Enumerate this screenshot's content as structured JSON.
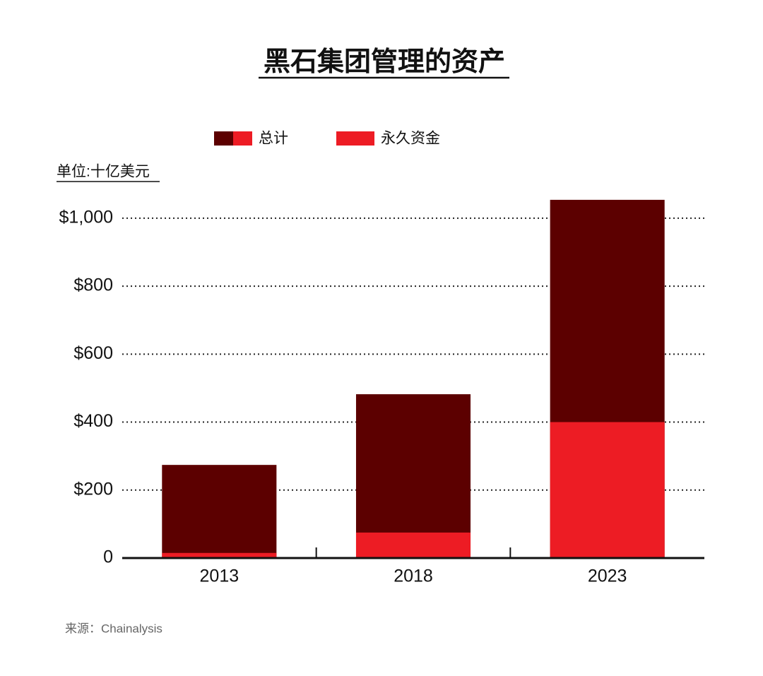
{
  "chart_data": {
    "type": "bar",
    "title": "黑石集团管理的资产",
    "y_axis_label": "单位:十亿美元",
    "source": "来源：Chainalysis",
    "categories": [
      "2013",
      "2018",
      "2023"
    ],
    "series": [
      {
        "name": "总计",
        "color": "#5c0000",
        "values": [
          274,
          482,
          1054
        ]
      },
      {
        "name": "永久资金",
        "color": "#ed1c24",
        "values": [
          15,
          75,
          400
        ]
      }
    ],
    "ylim": [
      0,
      1060
    ],
    "yticks": [
      0,
      {
        "value": 200,
        "label": "$200"
      },
      {
        "value": 400,
        "label": "$400"
      },
      {
        "value": 600,
        "label": "$600"
      },
      {
        "value": 800,
        "label": "$800"
      },
      {
        "value": 1000,
        "label": "$1,000"
      }
    ],
    "grid": true
  }
}
